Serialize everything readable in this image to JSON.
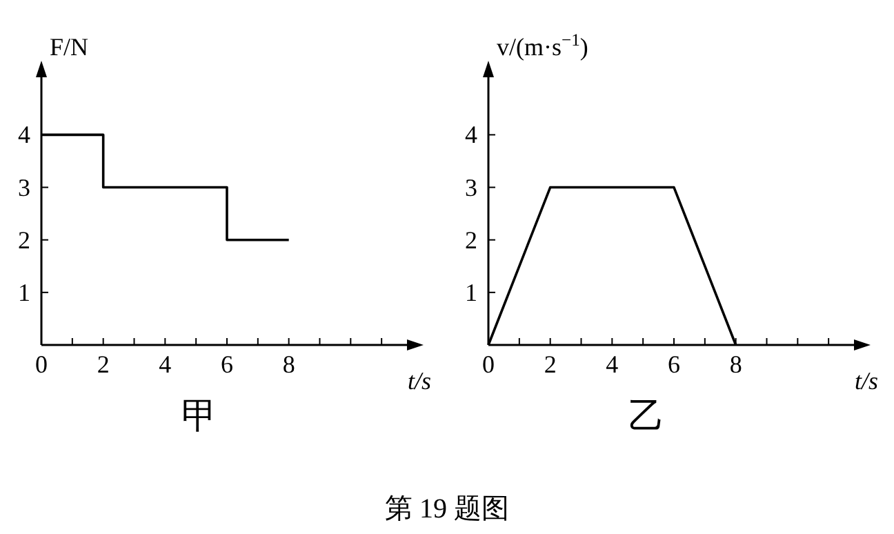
{
  "chart_data": [
    {
      "type": "step",
      "title": "甲",
      "xlabel": "t/s",
      "ylabel": "F/N",
      "x": [
        0,
        2,
        6,
        8
      ],
      "values": [
        4,
        3,
        2,
        2
      ],
      "color": "#000000",
      "xlim": [
        0,
        12
      ],
      "ylim": [
        0,
        5.2
      ],
      "xticks": [
        0,
        {
          "value": 1,
          "label": null
        },
        2,
        {
          "value": 3,
          "label": null
        },
        4,
        {
          "value": 5,
          "label": null
        },
        6,
        {
          "value": 7,
          "label": null
        },
        8,
        {
          "value": 9,
          "label": null
        },
        {
          "value": 10,
          "label": null
        },
        {
          "value": 11,
          "label": null
        }
      ],
      "yticks": [
        1,
        2,
        3,
        4
      ],
      "grid": false,
      "annotations": [
        "第 19 题图"
      ]
    },
    {
      "type": "line",
      "title": "乙",
      "xlabel": "t/s",
      "ylabel": "v/(m·s$^{−1}$)",
      "x": [
        0,
        2,
        6,
        8
      ],
      "values": [
        0,
        3,
        3,
        0
      ],
      "color": "#000000",
      "xlim": [
        0,
        12
      ],
      "ylim": [
        0,
        5.2
      ],
      "xticks": [
        0,
        {
          "value": 1,
          "label": null
        },
        2,
        {
          "value": 3,
          "label": null
        },
        4,
        {
          "value": 5,
          "label": null
        },
        6,
        {
          "value": 7,
          "label": null
        },
        8,
        {
          "value": 9,
          "label": null
        },
        {
          "value": 10,
          "label": null
        },
        {
          "value": 11,
          "label": null
        }
      ],
      "yticks": [
        1,
        2,
        3,
        4
      ],
      "grid": false
    }
  ]
}
